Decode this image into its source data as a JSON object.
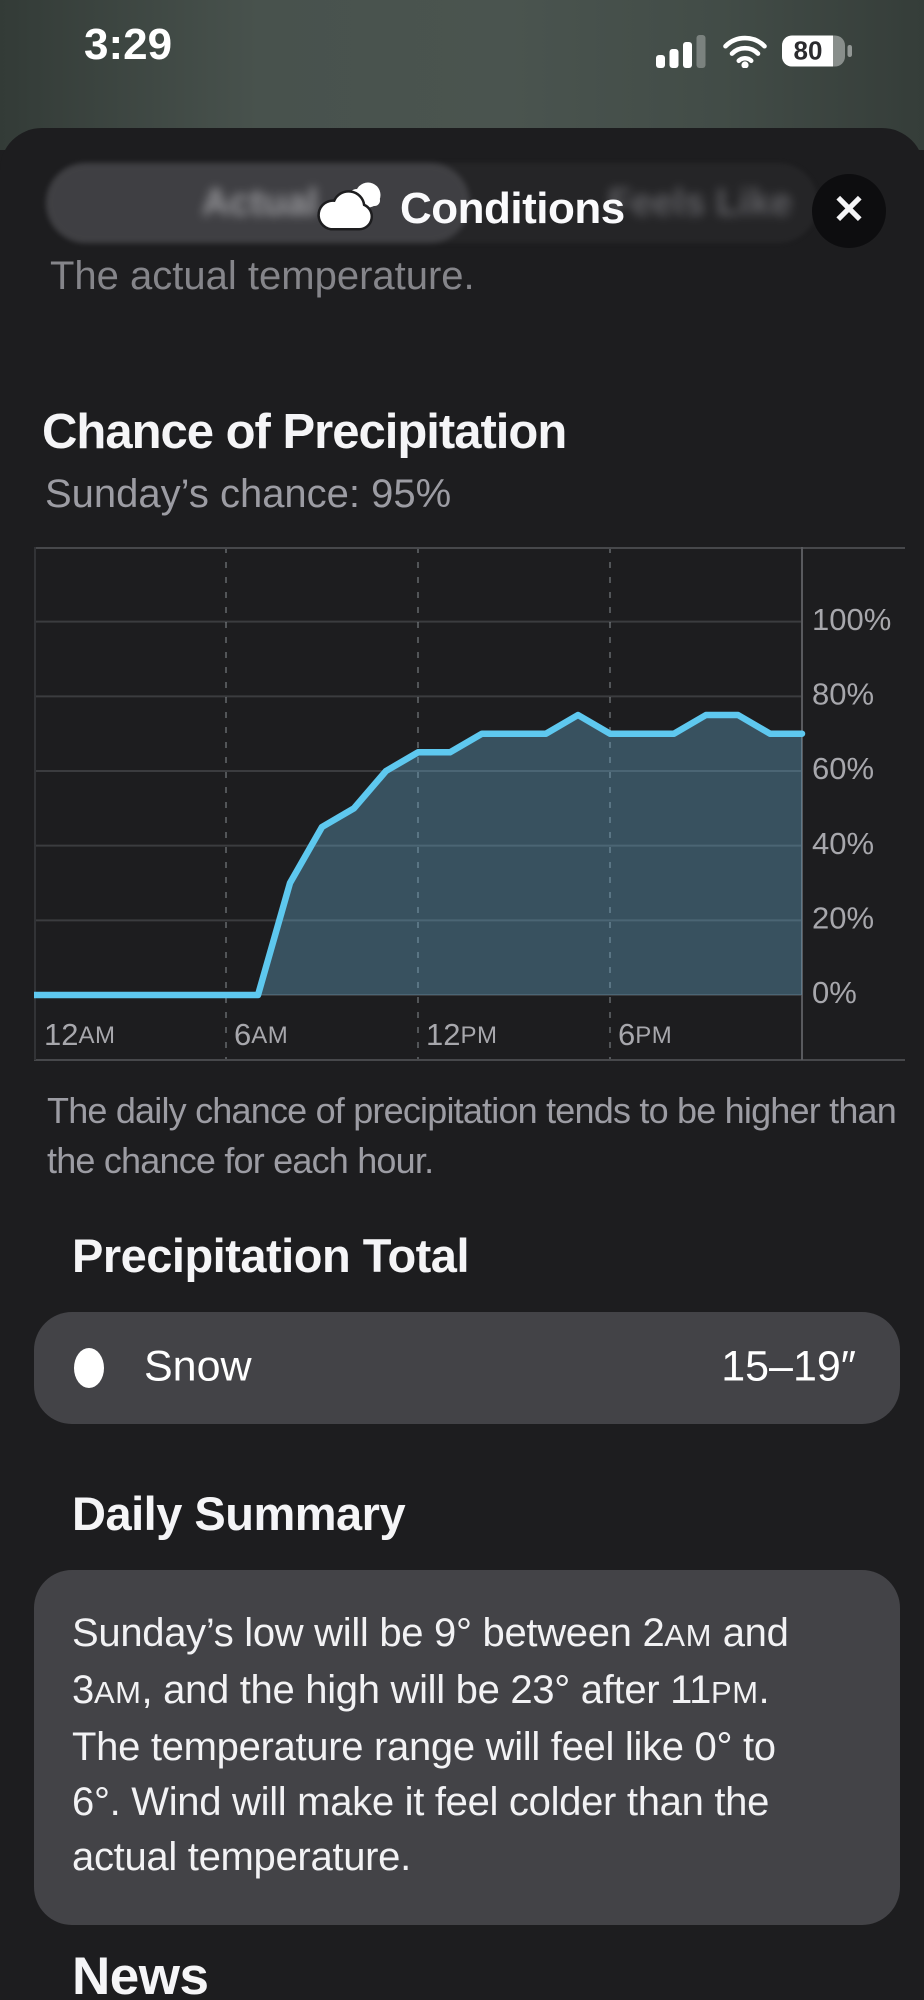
{
  "status_bar": {
    "time": "3:29",
    "battery_percent": "80"
  },
  "sheet_header": {
    "segmented_control": {
      "selected": "Actual",
      "options": [
        "Actual",
        "Feels Like"
      ]
    },
    "title": "Conditions",
    "close_label": "✕",
    "subtitle": "The actual temperature."
  },
  "precipitation_chance": {
    "title": "Chance of Precipitation",
    "subtitle": "Sunday’s chance: 95%",
    "footnote_lines": [
      "The daily chance of precipitation tends to be higher than",
      "the chance for each hour."
    ]
  },
  "chart_data": {
    "type": "area",
    "title": "Chance of Precipitation",
    "x_hours": [
      0,
      1,
      2,
      3,
      4,
      5,
      6,
      7,
      8,
      9,
      10,
      11,
      12,
      13,
      14,
      15,
      16,
      17,
      18,
      19,
      20,
      21,
      22,
      23,
      24
    ],
    "values_percent": [
      0,
      0,
      0,
      0,
      0,
      0,
      0,
      0,
      30,
      45,
      50,
      60,
      65,
      65,
      70,
      70,
      70,
      75,
      70,
      70,
      70,
      75,
      75,
      70,
      70
    ],
    "ylim": [
      0,
      120
    ],
    "grid": "on",
    "legend_position": "none",
    "y_ticks": [
      {
        "value": 100,
        "label": "100%"
      },
      {
        "value": 80,
        "label": "80%"
      },
      {
        "value": 60,
        "label": "60%"
      },
      {
        "value": 40,
        "label": "40%"
      },
      {
        "value": 20,
        "label": "20%"
      },
      {
        "value": 0,
        "label": "0%"
      }
    ],
    "x_ticks": [
      {
        "hour": 0,
        "num": "12",
        "suffix": "AM"
      },
      {
        "hour": 6,
        "num": "6",
        "suffix": "AM"
      },
      {
        "hour": 12,
        "num": "12",
        "suffix": "PM"
      },
      {
        "hour": 18,
        "num": "6",
        "suffix": "PM"
      }
    ],
    "line_color": "#5EC8EF",
    "fill_color": "rgba(105,175,210,0.36)"
  },
  "precipitation_total": {
    "title": "Precipitation Total",
    "rows": [
      {
        "label": "Snow",
        "value": "15–19″"
      }
    ]
  },
  "daily_summary": {
    "title": "Daily Summary",
    "lines": [
      [
        {
          "text": "Sunday’s low will be 9° between 2"
        },
        {
          "text": "AM",
          "small_caps": true
        },
        {
          "text": " and"
        }
      ],
      [
        {
          "text": "3"
        },
        {
          "text": "AM",
          "small_caps": true
        },
        {
          "text": ", and the high will be 23° after 11"
        },
        {
          "text": "PM",
          "small_caps": true
        },
        {
          "text": "."
        }
      ],
      [
        {
          "text": "The temperature range will feel like 0° to"
        }
      ],
      [
        {
          "text": "6°. Wind will make it feel colder than the"
        }
      ],
      [
        {
          "text": "actual temperature."
        }
      ]
    ]
  },
  "news": {
    "title": "News"
  },
  "colors": {
    "sheet_bg": "#1D1D1F",
    "card_bg": "#434347",
    "accent_line": "#5EC8EF",
    "secondary_text": "#9C9CA3",
    "top_background": "#48524D"
  }
}
